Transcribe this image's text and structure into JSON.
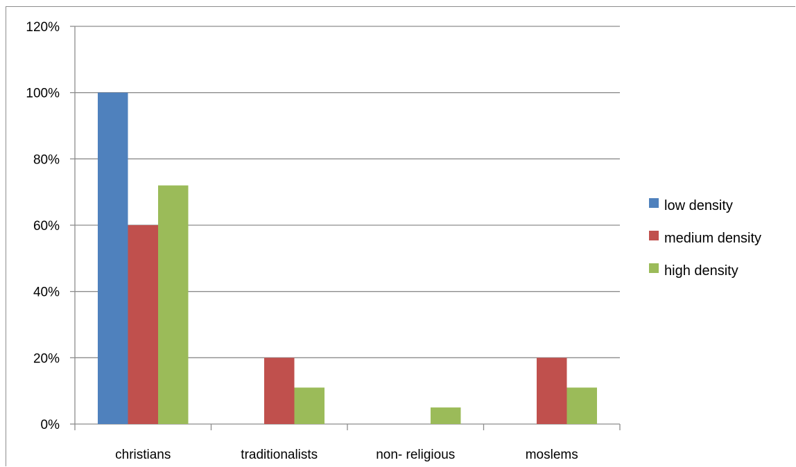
{
  "chart_data": {
    "type": "bar",
    "categories": [
      "christians",
      "traditionalists",
      "non- religious",
      "moslems"
    ],
    "series": [
      {
        "name": "low density",
        "values": [
          100,
          0,
          0,
          0
        ],
        "color": "#4f81bd"
      },
      {
        "name": "medium density",
        "values": [
          60,
          20,
          0,
          20
        ],
        "color": "#c0504d"
      },
      {
        "name": "high density",
        "values": [
          72,
          11,
          5,
          11
        ],
        "color": "#9bbb59"
      }
    ],
    "y_ticks": [
      "0%",
      "20%",
      "40%",
      "60%",
      "80%",
      "100%",
      "120%"
    ],
    "ylim": [
      0,
      120
    ],
    "y_unit": "%",
    "grid": true,
    "legend_position": "right"
  }
}
